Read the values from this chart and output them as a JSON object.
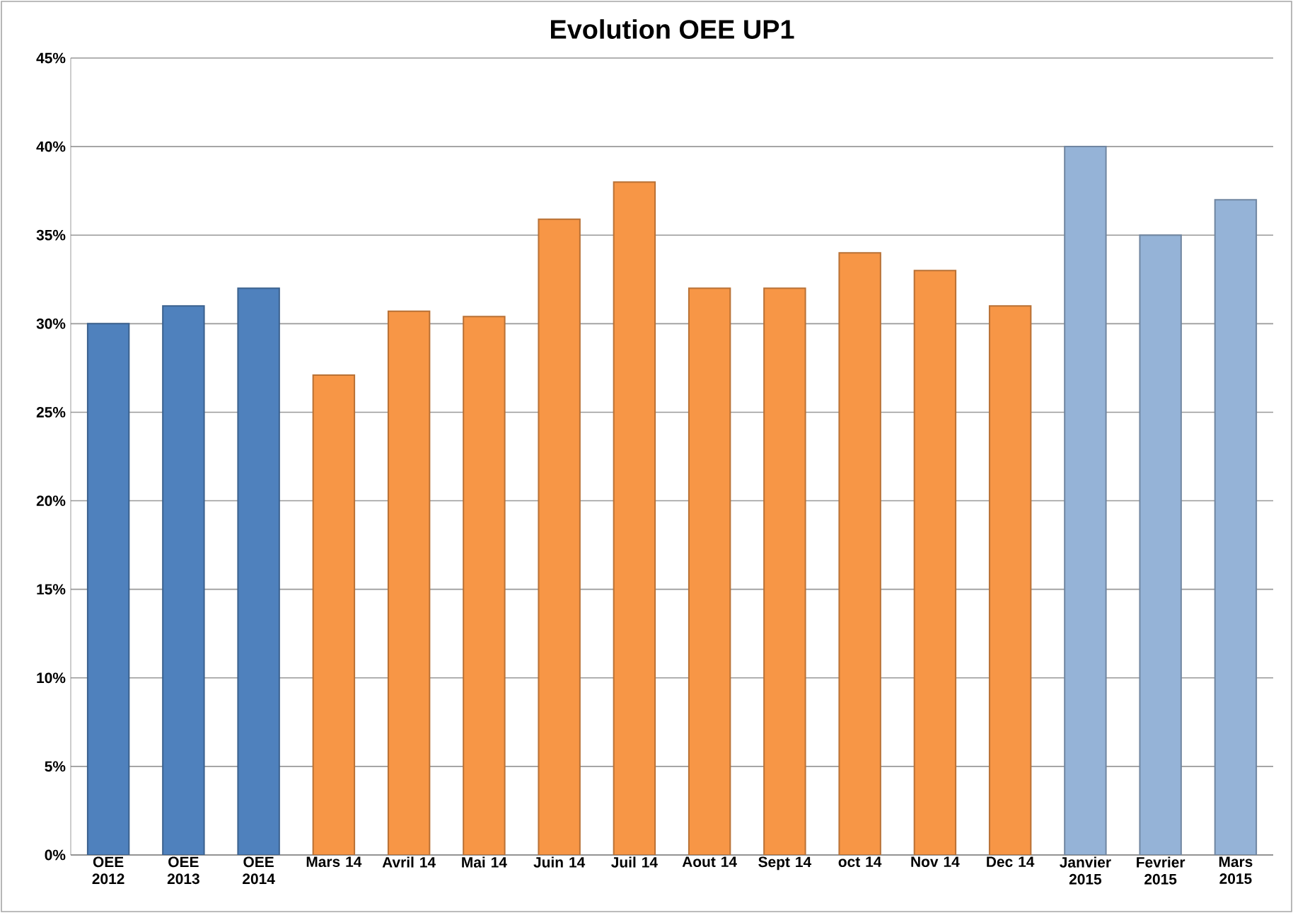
{
  "chart_data": {
    "type": "bar",
    "title": "Evolution OEE UP1",
    "categories": [
      "OEE 2012",
      "OEE 2013",
      "OEE 2014",
      "Mars 14",
      "Avril 14",
      "Mai 14",
      "Juin 14",
      "Juil 14",
      "Aout 14",
      "Sept 14",
      "oct 14",
      "Nov 14",
      "Dec 14",
      "Janvier 2015",
      "Fevrier 2015",
      "Mars 2015"
    ],
    "values": [
      30,
      31,
      32,
      27.1,
      30.7,
      30.4,
      35.9,
      38,
      32,
      32,
      34,
      33,
      31,
      40,
      35,
      37
    ],
    "colors": [
      "#4f81bd",
      "#4f81bd",
      "#4f81bd",
      "#f79646",
      "#f79646",
      "#f79646",
      "#f79646",
      "#f79646",
      "#f79646",
      "#f79646",
      "#f79646",
      "#f79646",
      "#f79646",
      "#95b3d7",
      "#95b3d7",
      "#95b3d7"
    ],
    "ylim": [
      0,
      45
    ],
    "yticks": [
      {
        "value": 0,
        "label": "0%"
      },
      {
        "value": 5,
        "label": "5%"
      },
      {
        "value": 10,
        "label": "10%"
      },
      {
        "value": 15,
        "label": "15%"
      },
      {
        "value": 20,
        "label": "20%"
      },
      {
        "value": 25,
        "label": "25%"
      },
      {
        "value": 30,
        "label": "30%"
      },
      {
        "value": 35,
        "label": "35%"
      },
      {
        "value": 40,
        "label": "40%"
      },
      {
        "value": 45,
        "label": "45%"
      }
    ],
    "grid": "y"
  }
}
